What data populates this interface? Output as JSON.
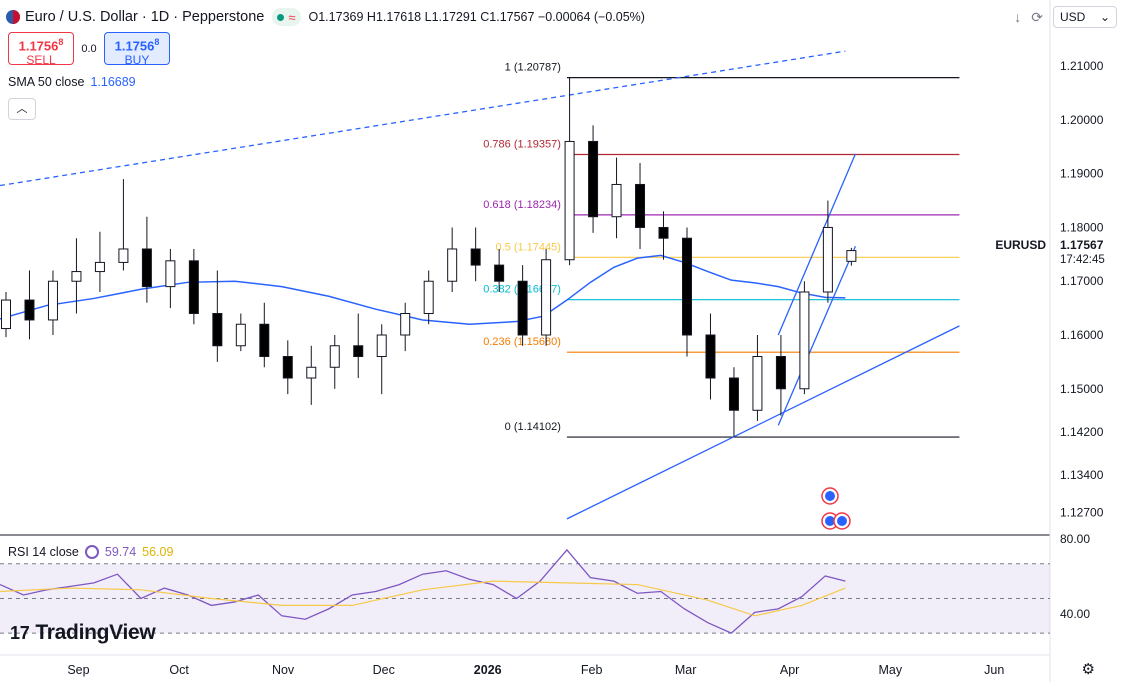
{
  "header": {
    "symbol_title": "Euro / U.S. Dollar · 1D · Pepperstone",
    "open_label": "O",
    "open": "1.17369",
    "high_label": "H",
    "high": "1.17618",
    "low_label": "L",
    "low": "1.17291",
    "close_label": "C",
    "close": "1.17567",
    "change": "−0.00064 (−0.05%)",
    "currency": "USD"
  },
  "trade": {
    "sell_price": "1.1756",
    "sell_sup": "8",
    "sell_label": "SELL",
    "spread": "0.0",
    "buy_price": "1.1756",
    "buy_sup": "8",
    "buy_label": "BUY"
  },
  "indicators": {
    "sma_label": "SMA 50 close",
    "sma_value": "1.16689",
    "rsi_label": "RSI 14 close",
    "rsi_value": "59.74",
    "rsi_ma_value": "56.09"
  },
  "price_axis": {
    "ticks": [
      "1.21000",
      "1.20000",
      "1.19000",
      "1.18000",
      "1.17000",
      "1.16000",
      "1.15000",
      "1.14200",
      "1.13400",
      "1.12700"
    ],
    "last_label": "EURUSD",
    "last_price": "1.17567",
    "countdown": "17:42:45"
  },
  "rsi_axis": {
    "ticks": [
      "80.00",
      "40.00"
    ]
  },
  "time_axis": {
    "labels": [
      "Sep",
      "Oct",
      "Nov",
      "Dec",
      "2026",
      "Feb",
      "Mar",
      "Apr",
      "May",
      "Jun"
    ]
  },
  "colors": {
    "up": "#ffffff",
    "down": "#000000",
    "sma": "#2962ff",
    "rsi": "#7e57c2",
    "rsi_ma": "#f7c948",
    "fib_1": "#131722",
    "fib_786": "#b22833",
    "fib_618": "#9c27b0",
    "fib_5": "#f7c948",
    "fib_382": "#00bcd4",
    "fib_236": "#f57c00",
    "fib_0": "#131722"
  },
  "branding": {
    "logo_text": "TradingView"
  },
  "chart_data": {
    "type": "candlestick",
    "title": "Euro / U.S. Dollar · 1D · Pepperstone",
    "timeframe": "1D",
    "x_range": [
      "2025-08-11",
      "2026-06-20"
    ],
    "ylim": [
      1.1228,
      1.2158
    ],
    "fibonacci": [
      {
        "level": "1",
        "price": 1.20787,
        "label": "1 (1.20787)"
      },
      {
        "level": "0.786",
        "price": 1.19357,
        "label": "0.786 (1.19357)"
      },
      {
        "level": "0.618",
        "price": 1.18234,
        "label": "0.618 (1.18234)"
      },
      {
        "level": "0.5",
        "price": 1.17445,
        "label": "0.5 (1.17445)"
      },
      {
        "level": "0.382",
        "price": 1.16657,
        "label": "0.382 (1.16657)"
      },
      {
        "level": "0.236",
        "price": 1.1568,
        "label": "0.236 (1.15680)"
      },
      {
        "level": "0",
        "price": 1.14102,
        "label": "0 (1.14102)"
      }
    ],
    "fib_x_range": [
      "2026-01-27",
      "2026-05-24"
    ],
    "trendlines": [
      {
        "name": "upper-dashed",
        "style": "dashed",
        "from": {
          "date": "2025-08-11",
          "price": 1.1878
        },
        "to": {
          "date": "2026-04-20",
          "price": 1.2128
        }
      },
      {
        "name": "lower-support",
        "style": "solid",
        "from": {
          "date": "2026-01-27",
          "price": 1.1258
        },
        "to": {
          "date": "2026-05-24",
          "price": 1.1617
        }
      },
      {
        "name": "channel-upper",
        "style": "solid",
        "from": {
          "date": "2026-03-31",
          "price": 1.16
        },
        "to": {
          "date": "2026-04-23",
          "price": 1.1937
        }
      },
      {
        "name": "channel-lower",
        "style": "solid",
        "from": {
          "date": "2026-03-31",
          "price": 1.1432
        },
        "to": {
          "date": "2026-04-23",
          "price": 1.1765
        }
      }
    ],
    "series": [
      {
        "name": "SMA 50 close",
        "type": "line",
        "points": [
          [
            "2025-08-11",
            1.163
          ],
          [
            "2025-08-25",
            1.1655
          ],
          [
            "2025-09-08",
            1.1668
          ],
          [
            "2025-09-22",
            1.1685
          ],
          [
            "2025-10-06",
            1.1698
          ],
          [
            "2025-10-20",
            1.17
          ],
          [
            "2025-11-03",
            1.169
          ],
          [
            "2025-11-17",
            1.1672
          ],
          [
            "2025-12-01",
            1.1648
          ],
          [
            "2025-12-15",
            1.1628
          ],
          [
            "2025-12-29",
            1.162
          ],
          [
            "2026-01-12",
            1.1625
          ],
          [
            "2026-01-20",
            1.1635
          ],
          [
            "2026-01-27",
            1.1665
          ],
          [
            "2026-02-03",
            1.1698
          ],
          [
            "2026-02-10",
            1.1726
          ],
          [
            "2026-02-17",
            1.1743
          ],
          [
            "2026-02-24",
            1.1748
          ],
          [
            "2026-03-03",
            1.1735
          ],
          [
            "2026-03-10",
            1.1718
          ],
          [
            "2026-03-17",
            1.1702
          ],
          [
            "2026-03-24",
            1.1697
          ],
          [
            "2026-03-31",
            1.169
          ],
          [
            "2026-04-07",
            1.1678
          ],
          [
            "2026-04-14",
            1.167
          ],
          [
            "2026-04-20",
            1.1669
          ]
        ]
      },
      {
        "name": "RSI 14 close",
        "type": "line",
        "ylim": [
          22,
          82
        ],
        "bands": [
          70,
          50,
          30
        ],
        "points": [
          [
            "2025-08-11",
            58
          ],
          [
            "2025-08-18",
            52
          ],
          [
            "2025-08-25",
            55
          ],
          [
            "2025-09-01",
            57
          ],
          [
            "2025-09-08",
            59
          ],
          [
            "2025-09-15",
            64
          ],
          [
            "2025-09-22",
            50
          ],
          [
            "2025-09-29",
            56
          ],
          [
            "2025-10-06",
            52
          ],
          [
            "2025-10-13",
            46
          ],
          [
            "2025-10-20",
            48
          ],
          [
            "2025-10-27",
            52
          ],
          [
            "2025-11-03",
            40
          ],
          [
            "2025-11-10",
            38
          ],
          [
            "2025-11-17",
            44
          ],
          [
            "2025-11-24",
            52
          ],
          [
            "2025-12-01",
            54
          ],
          [
            "2025-12-08",
            58
          ],
          [
            "2025-12-15",
            64
          ],
          [
            "2025-12-22",
            66
          ],
          [
            "2025-12-29",
            61
          ],
          [
            "2026-01-05",
            58
          ],
          [
            "2026-01-12",
            50
          ],
          [
            "2026-01-19",
            60
          ],
          [
            "2026-01-27",
            78
          ],
          [
            "2026-02-03",
            62
          ],
          [
            "2026-02-10",
            60
          ],
          [
            "2026-02-17",
            53
          ],
          [
            "2026-02-24",
            54
          ],
          [
            "2026-03-03",
            44
          ],
          [
            "2026-03-10",
            36
          ],
          [
            "2026-03-17",
            30
          ],
          [
            "2026-03-24",
            42
          ],
          [
            "2026-03-31",
            44
          ],
          [
            "2026-04-07",
            51
          ],
          [
            "2026-04-14",
            63
          ],
          [
            "2026-04-20",
            60
          ]
        ]
      },
      {
        "name": "RSI MA",
        "type": "line",
        "ylim": [
          22,
          82
        ],
        "points": [
          [
            "2025-08-11",
            54
          ],
          [
            "2025-09-01",
            56
          ],
          [
            "2025-09-22",
            55
          ],
          [
            "2025-10-13",
            50
          ],
          [
            "2025-11-03",
            46
          ],
          [
            "2025-11-24",
            46
          ],
          [
            "2025-12-15",
            55
          ],
          [
            "2026-01-05",
            60
          ],
          [
            "2026-01-27",
            59
          ],
          [
            "2026-02-17",
            58
          ],
          [
            "2026-03-10",
            49
          ],
          [
            "2026-03-24",
            40
          ],
          [
            "2026-04-07",
            46
          ],
          [
            "2026-04-20",
            56
          ]
        ]
      }
    ],
    "candles": [
      [
        "2025-08-11",
        1.1612,
        1.168,
        1.1596,
        1.1665
      ],
      [
        "2025-08-18",
        1.1665,
        1.172,
        1.1592,
        1.1628
      ],
      [
        "2025-08-25",
        1.1628,
        1.172,
        1.16,
        1.17
      ],
      [
        "2025-09-01",
        1.17,
        1.178,
        1.164,
        1.1718
      ],
      [
        "2025-09-08",
        1.1718,
        1.1792,
        1.168,
        1.1735
      ],
      [
        "2025-09-15",
        1.1735,
        1.189,
        1.172,
        1.176
      ],
      [
        "2025-09-22",
        1.176,
        1.182,
        1.166,
        1.169
      ],
      [
        "2025-09-29",
        1.169,
        1.176,
        1.165,
        1.1738
      ],
      [
        "2025-10-06",
        1.1738,
        1.176,
        1.162,
        1.164
      ],
      [
        "2025-10-13",
        1.164,
        1.172,
        1.155,
        1.158
      ],
      [
        "2025-10-20",
        1.158,
        1.164,
        1.157,
        1.162
      ],
      [
        "2025-10-27",
        1.162,
        1.166,
        1.154,
        1.156
      ],
      [
        "2025-11-03",
        1.156,
        1.159,
        1.149,
        1.152
      ],
      [
        "2025-11-10",
        1.152,
        1.158,
        1.147,
        1.154
      ],
      [
        "2025-11-17",
        1.154,
        1.16,
        1.15,
        1.158
      ],
      [
        "2025-11-24",
        1.158,
        1.164,
        1.152,
        1.156
      ],
      [
        "2025-12-01",
        1.156,
        1.162,
        1.149,
        1.16
      ],
      [
        "2025-12-08",
        1.16,
        1.166,
        1.157,
        1.164
      ],
      [
        "2025-12-15",
        1.164,
        1.172,
        1.162,
        1.17
      ],
      [
        "2025-12-22",
        1.17,
        1.18,
        1.168,
        1.176
      ],
      [
        "2025-12-29",
        1.176,
        1.18,
        1.17,
        1.173
      ],
      [
        "2026-01-05",
        1.173,
        1.176,
        1.168,
        1.17
      ],
      [
        "2026-01-12",
        1.17,
        1.173,
        1.158,
        1.16
      ],
      [
        "2026-01-19",
        1.16,
        1.176,
        1.158,
        1.174
      ],
      [
        "2026-01-26",
        1.174,
        1.2079,
        1.173,
        1.196
      ],
      [
        "2026-02-02",
        1.196,
        1.199,
        1.179,
        1.182
      ],
      [
        "2026-02-09",
        1.182,
        1.193,
        1.178,
        1.188
      ],
      [
        "2026-02-16",
        1.188,
        1.192,
        1.176,
        1.18
      ],
      [
        "2026-02-23",
        1.18,
        1.183,
        1.174,
        1.178
      ],
      [
        "2026-03-02",
        1.178,
        1.18,
        1.156,
        1.16
      ],
      [
        "2026-03-09",
        1.16,
        1.164,
        1.148,
        1.152
      ],
      [
        "2026-03-16",
        1.152,
        1.154,
        1.141,
        1.146
      ],
      [
        "2026-03-23",
        1.146,
        1.16,
        1.144,
        1.156
      ],
      [
        "2026-03-30",
        1.156,
        1.16,
        1.145,
        1.15
      ],
      [
        "2026-04-06",
        1.15,
        1.17,
        1.149,
        1.168
      ],
      [
        "2026-04-13",
        1.168,
        1.185,
        1.166,
        1.18
      ],
      [
        "2026-04-20",
        1.1737,
        1.1762,
        1.1729,
        1.1757
      ]
    ]
  }
}
